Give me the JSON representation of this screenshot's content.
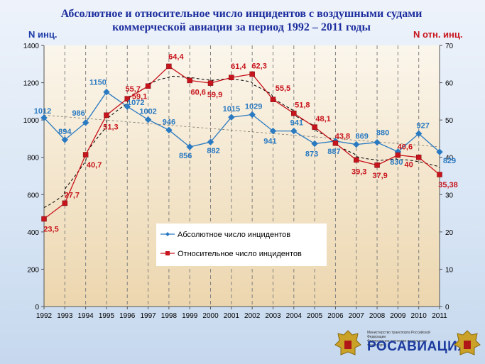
{
  "title_line1": "Абсолютное и относительное число инцидентов с воздушными судами",
  "title_line2": "коммерческой авиации за период 1992 – 2011 годы",
  "logo": {
    "name": "РОСАВИАЦИЯ",
    "ministry_line1": "Министерство транспорта Российской Федерации",
    "ministry_line2": "Федеральное агентство воздушного транспорта"
  },
  "colors": {
    "absolute": "#2a7ac2",
    "relative": "#c8141c",
    "trend": "#000000",
    "grid": "#808080",
    "plot_bg": "#f5ebd7"
  },
  "chart_data": {
    "type": "line",
    "title": "Абсолютное и относительное число инцидентов с воздушными судами коммерческой авиации за период 1992 – 2011 годы",
    "y_left_label": "N инц.",
    "y_right_label": "N отн. инц.",
    "y_left_lim": [
      0,
      1400
    ],
    "y_left_ticks": [
      0,
      200,
      400,
      600,
      800,
      1000,
      1200,
      1400
    ],
    "y_right_lim": [
      0,
      70
    ],
    "y_right_ticks": [
      0,
      10,
      20,
      30,
      40,
      50,
      60,
      70
    ],
    "x": [
      "1992",
      "1993",
      "1994",
      "1995",
      "1996",
      "1997",
      "1998",
      "1999",
      "2000",
      "2001",
      "2002",
      "2003",
      "2004",
      "2005",
      "2006",
      "2007",
      "2008",
      "2009",
      "2010",
      "2011"
    ],
    "grid": "vertical-dashed",
    "legend_position": "center",
    "series": [
      {
        "name": "Абсолютное число инцидентов",
        "axis": "left",
        "marker": "diamond",
        "values": [
          1012,
          894,
          986,
          1150,
          1072,
          1002,
          946,
          856,
          882,
          1015,
          1029,
          941,
          941,
          873,
          887,
          869,
          880,
          830,
          927,
          829
        ],
        "labels": [
          "1012",
          "894",
          "986",
          "1150",
          "1072",
          "1002",
          "946",
          "856",
          "882",
          "1015",
          "1029",
          "941",
          "941",
          "873",
          "887",
          "869",
          "880",
          "830",
          "927",
          "829"
        ]
      },
      {
        "name": "Относительное число инцидентов",
        "axis": "right",
        "marker": "square",
        "values": [
          23.5,
          27.7,
          40.7,
          51.3,
          55.7,
          59.1,
          64.4,
          60.6,
          59.9,
          61.4,
          62.3,
          55.5,
          51.8,
          48.1,
          43.8,
          39.3,
          37.9,
          40.6,
          40,
          35.38
        ],
        "labels": [
          "23,5",
          "27,7",
          "40,7",
          "51,3",
          "55,7",
          "59,1",
          "64,4",
          "60,6",
          "59,9",
          "61,4",
          "62,3",
          "55,5",
          "51,8",
          "48,1",
          "43,8",
          "39,3",
          "37,9",
          "40,6",
          "40",
          "35,38"
        ]
      }
    ]
  }
}
